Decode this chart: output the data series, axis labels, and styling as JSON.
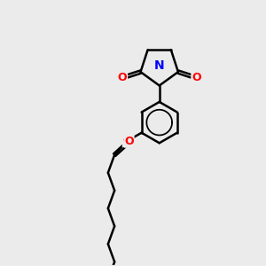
{
  "bg_color": "#ebebeb",
  "bond_color": "#000000",
  "N_color": "#0000ff",
  "O_color": "#ff0000",
  "bond_width": 1.8,
  "figsize": [
    3.0,
    3.0
  ],
  "dpi": 100,
  "xlim": [
    0,
    10
  ],
  "ylim": [
    0,
    10
  ]
}
